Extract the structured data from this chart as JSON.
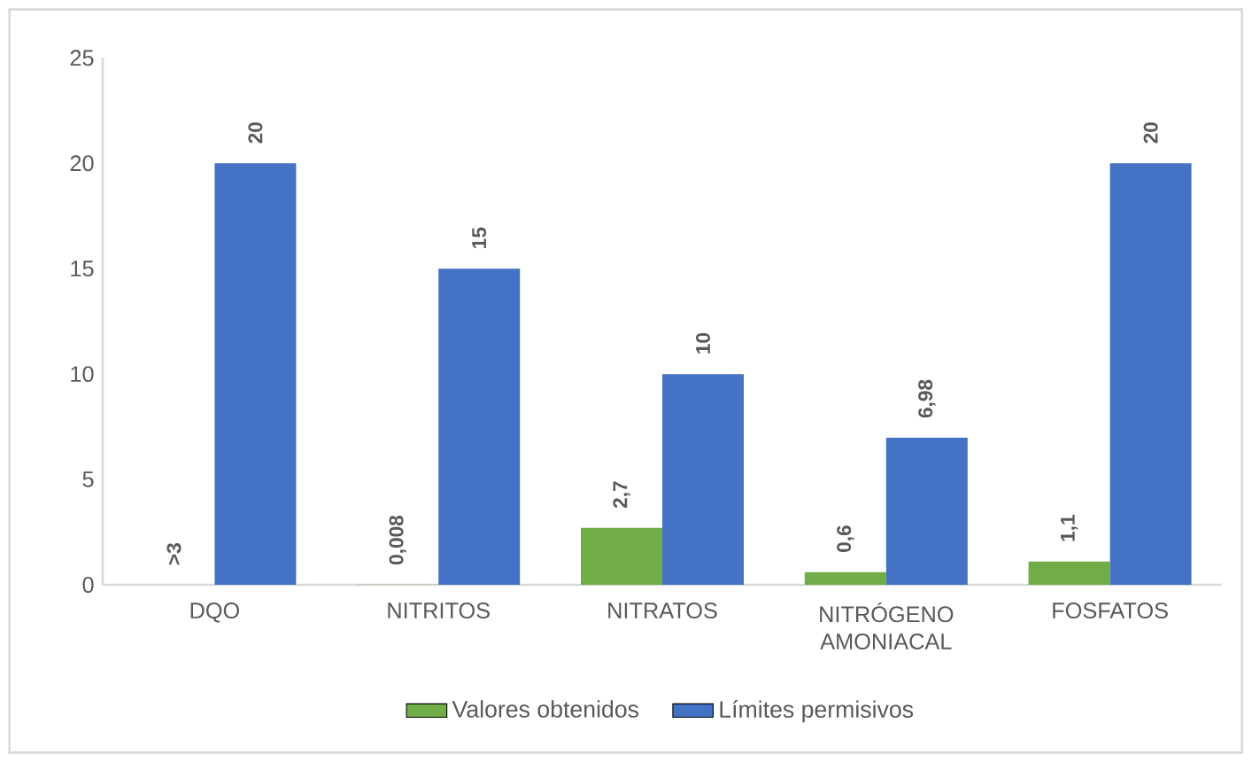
{
  "chart_data": {
    "type": "bar",
    "categories": [
      "DQO",
      "NITRITOS",
      "NITRATOS",
      "NITRÓGENO AMONIACAL",
      "FOSFATOS"
    ],
    "series": [
      {
        "name": "Valores obtenidos",
        "color": "#70ad47",
        "values": [
          null,
          0.008,
          2.7,
          0.6,
          1.1
        ],
        "value_labels": [
          ">3",
          "0,008",
          "2,7",
          "0,6",
          "1,1"
        ]
      },
      {
        "name": "Límites permisivos",
        "color": "#4472c4",
        "values": [
          20,
          15,
          10,
          6.98,
          20
        ],
        "value_labels": [
          "20",
          "15",
          "10",
          "6,98",
          "20"
        ]
      }
    ],
    "ylim": [
      0,
      25
    ],
    "yticks": [
      0,
      5,
      10,
      15,
      20,
      25
    ],
    "legend": "bottom"
  }
}
